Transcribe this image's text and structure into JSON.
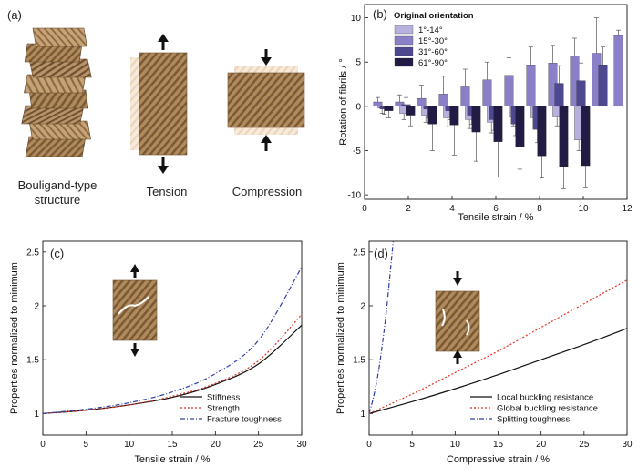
{
  "panel_a": {
    "label": "(a)",
    "captions": {
      "structure_line1": "Bouligand-type",
      "structure_line2": "structure",
      "tension": "Tension",
      "compression": "Compression"
    }
  },
  "panel_b": {
    "label": "(b)",
    "legend_title": "Original orientation",
    "xlabel": "Tensile strain / %",
    "ylabel": "Rotation of fibrils / °"
  },
  "panel_c": {
    "label": "(c)"
  },
  "panel_d": {
    "label": "(d)"
  },
  "chart_data": [
    {
      "id": "b",
      "type": "bar",
      "xlabel": "Tensile strain / %",
      "ylabel": "Rotation of fibrils / °",
      "xlim": [
        0,
        12
      ],
      "ylim": [
        -10.5,
        11.5
      ],
      "xticks": [
        0,
        2,
        4,
        6,
        8,
        10,
        12
      ],
      "yticks": [
        -10,
        -5,
        0,
        5,
        10
      ],
      "legend_title": "Original orientation",
      "legend_position": "top-left",
      "series": [
        {
          "name": "1°-14°",
          "color": "#b6b0dc",
          "x": [
            0.8,
            1.8,
            2.8,
            3.8,
            4.8,
            5.8,
            6.8,
            7.8,
            8.8,
            9.8
          ],
          "values": [
            -0.2,
            -0.8,
            -1.0,
            -1.3,
            -1.5,
            -1.8,
            -1.2,
            -1.3,
            -1.2,
            -3.8
          ],
          "errors": [
            0.6,
            0.7,
            0.8,
            1.0,
            1.0,
            1.2,
            1.0,
            1.0,
            1.0,
            1.2
          ]
        },
        {
          "name": "15°-30°",
          "color": "#8a80c8",
          "x": [
            0.6,
            1.6,
            2.6,
            3.6,
            4.6,
            5.6,
            6.6,
            7.6,
            8.6,
            9.6,
            10.6,
            11.6
          ],
          "values": [
            0.5,
            0.5,
            0.9,
            1.4,
            2.2,
            3.0,
            3.5,
            4.7,
            4.9,
            5.7,
            6.0,
            8.0
          ],
          "errors": [
            0.5,
            0.8,
            1.5,
            2.0,
            2.0,
            2.0,
            2.0,
            2.0,
            2.0,
            2.0,
            4.0,
            0.6
          ]
        },
        {
          "name": "31°-60°",
          "color": "#4e4890",
          "x": [
            0.9,
            1.9,
            2.9,
            3.9,
            4.9,
            5.9,
            6.9,
            7.9,
            8.9,
            9.9,
            10.9
          ],
          "values": [
            -0.3,
            0.2,
            -0.3,
            -0.5,
            -1.0,
            -1.5,
            -2.0,
            -2.6,
            2.6,
            2.9,
            4.7
          ],
          "errors": [
            0.6,
            0.8,
            1.0,
            1.0,
            1.0,
            1.2,
            1.3,
            1.5,
            2.0,
            2.0,
            2.0
          ]
        },
        {
          "name": "61°-90°",
          "color": "#221c44",
          "x": [
            1.1,
            2.1,
            3.1,
            4.1,
            5.1,
            6.1,
            7.1,
            8.1,
            9.1,
            10.1
          ],
          "values": [
            -0.5,
            -1.0,
            -2.0,
            -2.1,
            -2.9,
            -4.0,
            -4.6,
            -5.6,
            -6.8,
            -6.7
          ],
          "errors": [
            0.8,
            1.2,
            3.0,
            3.4,
            3.3,
            4.0,
            2.5,
            2.5,
            2.5,
            2.5
          ]
        }
      ]
    },
    {
      "id": "c",
      "type": "line",
      "xlabel": "Tensile strain / %",
      "ylabel": "Properties normalized to minimum",
      "xlim": [
        0,
        30
      ],
      "ylim": [
        0.8,
        2.6
      ],
      "xticks": [
        0,
        5,
        10,
        15,
        20,
        25,
        30
      ],
      "yticks": [
        1.0,
        1.5,
        2.0,
        2.5
      ],
      "legend_position": "bottom-right",
      "series": [
        {
          "name": "Stiffness",
          "color": "#111111",
          "dash": "",
          "x": [
            0,
            5,
            10,
            15,
            20,
            25,
            30
          ],
          "values": [
            1.0,
            1.03,
            1.08,
            1.15,
            1.27,
            1.46,
            1.82
          ]
        },
        {
          "name": "Strength",
          "color": "#e03020",
          "dash": "2,2",
          "x": [
            0,
            5,
            10,
            15,
            20,
            25,
            30
          ],
          "values": [
            1.0,
            1.03,
            1.08,
            1.16,
            1.28,
            1.49,
            1.92
          ]
        },
        {
          "name": "Fracture toughness",
          "color": "#3040a0",
          "dash": "5,2,1,2",
          "x": [
            0,
            5,
            10,
            15,
            20,
            25,
            30
          ],
          "values": [
            1.0,
            1.04,
            1.1,
            1.2,
            1.37,
            1.68,
            2.36
          ]
        }
      ]
    },
    {
      "id": "d",
      "type": "line",
      "xlabel": "Compressive strain / %",
      "ylabel": "Properties normalized to minimum",
      "xlim": [
        0,
        30
      ],
      "ylim": [
        0.8,
        2.6
      ],
      "xticks": [
        0,
        5,
        10,
        15,
        20,
        25,
        30
      ],
      "yticks": [
        1.0,
        1.5,
        2.0,
        2.5
      ],
      "legend_position": "bottom-right",
      "series": [
        {
          "name": "Local buckling resistance",
          "color": "#111111",
          "dash": "",
          "x": [
            0,
            5,
            10,
            15,
            20,
            25,
            30
          ],
          "values": [
            1.0,
            1.11,
            1.23,
            1.36,
            1.5,
            1.64,
            1.79
          ]
        },
        {
          "name": "Global buckling resistance",
          "color": "#e03020",
          "dash": "2,2",
          "x": [
            0,
            5,
            10,
            15,
            20,
            25,
            30
          ],
          "values": [
            1.0,
            1.18,
            1.38,
            1.58,
            1.8,
            2.02,
            2.24
          ]
        },
        {
          "name": "Splitting toughness",
          "color": "#3040a0",
          "dash": "5,2,1,2",
          "x": [
            0,
            0.5,
            1,
            1.5,
            2,
            2.5,
            2.8
          ],
          "values": [
            1.0,
            1.15,
            1.35,
            1.62,
            1.95,
            2.35,
            2.6
          ]
        }
      ]
    }
  ]
}
